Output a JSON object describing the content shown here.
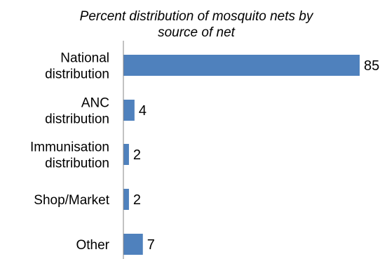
{
  "chart_data": {
    "type": "bar",
    "orientation": "horizontal",
    "title_lines": [
      "Percent distribution of mosquito nets by",
      "source of net"
    ],
    "categories": [
      [
        "National",
        "distribution"
      ],
      [
        "ANC",
        "distribution"
      ],
      [
        "Immunisation",
        "distribution"
      ],
      [
        "Shop/Market"
      ],
      [
        "Other"
      ]
    ],
    "values": [
      85,
      4,
      2,
      2,
      7
    ],
    "xlim": [
      0,
      85
    ],
    "bar_color": "#4F81BD",
    "axis_color": "#868686",
    "grid": false,
    "legend": "none"
  }
}
